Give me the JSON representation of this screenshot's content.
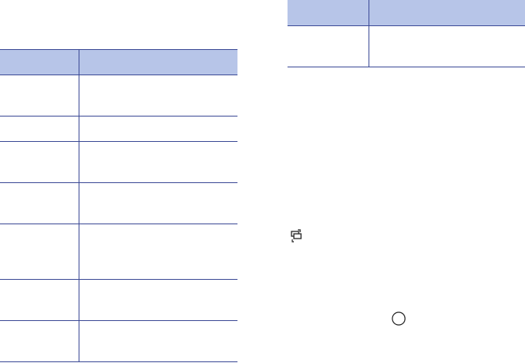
{
  "colors": {
    "header_bg": "#b7c5e8",
    "rule": "#3c4a96"
  },
  "left_table": {
    "headers": [
      "",
      ""
    ],
    "rows": [
      [
        "",
        ""
      ],
      [
        "",
        ""
      ],
      [
        "",
        ""
      ],
      [
        "",
        ""
      ],
      [
        "",
        ""
      ],
      [
        "",
        ""
      ],
      [
        "",
        ""
      ]
    ]
  },
  "right_table": {
    "headers": [
      "",
      ""
    ],
    "rows": [
      [
        "",
        ""
      ]
    ]
  },
  "icons": [
    "switch-windows-icon",
    "circle-icon"
  ]
}
